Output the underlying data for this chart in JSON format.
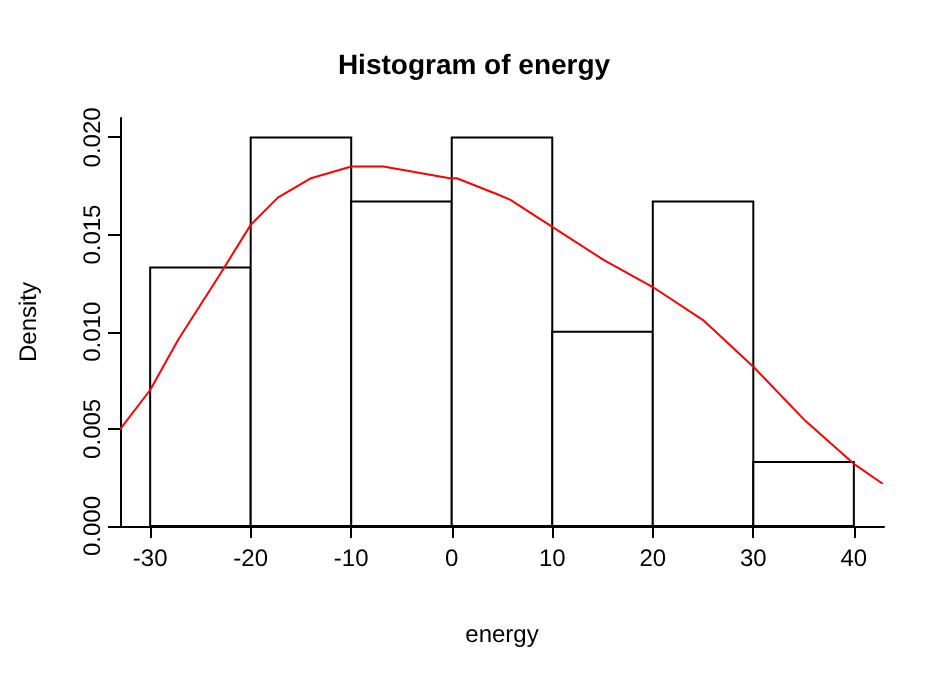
{
  "chart_data": {
    "type": "histogram",
    "title": "Histogram of energy",
    "xlabel": "energy",
    "ylabel": "Density",
    "series": [
      {
        "type": "histogram",
        "color": "#000000",
        "bins": [
          -30,
          -20,
          -10,
          0,
          10,
          20,
          30,
          40
        ],
        "values": [
          0.0133,
          0.02,
          0.0167,
          0.02,
          0.01,
          0.0167,
          0.0033
        ]
      },
      {
        "type": "line",
        "color": "#ff0000",
        "x": [
          -32.96,
          -30,
          -27.2,
          -23,
          -20,
          -17.3,
          -14,
          -10,
          -6.8,
          -0.2,
          0.5,
          4.4,
          5.8,
          10,
          15.1,
          20,
          25,
          30,
          35.2,
          40,
          42.8
        ],
        "values": [
          0.005,
          0.007,
          0.0096,
          0.013,
          0.0155,
          0.0169,
          0.0179,
          0.0185,
          0.0185,
          0.0179,
          0.0179,
          0.0171,
          0.0168,
          0.0154,
          0.0137,
          0.0123,
          0.0106,
          0.0082,
          0.0054,
          0.0032,
          0.0022
        ]
      }
    ],
    "xlim": [
      -33,
      43
    ],
    "xticks": [
      -30,
      -20,
      -10,
      0,
      10,
      20,
      30,
      40
    ],
    "ylim": [
      0,
      0.021
    ],
    "yticks": [
      {
        "value": 0,
        "label": "0.000"
      },
      {
        "value": 0.005,
        "label": "0.005"
      },
      {
        "value": 0.01,
        "label": "0.010"
      },
      {
        "value": 0.015,
        "label": "0.015"
      },
      {
        "value": 0.02,
        "label": "0.020"
      }
    ],
    "grid": false,
    "line_style": "solid",
    "marker": "none"
  }
}
